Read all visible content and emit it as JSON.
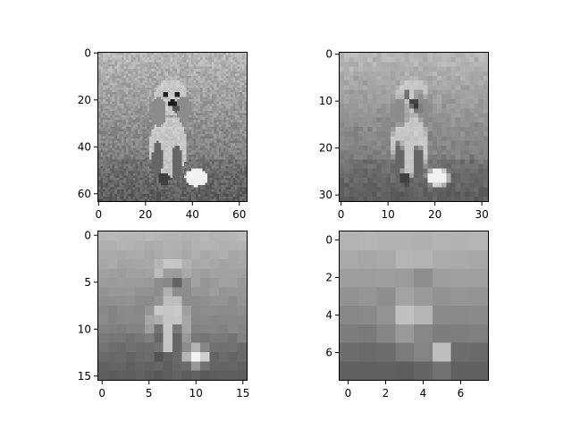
{
  "figure": {
    "background": "#ffffff",
    "panels": [
      {
        "name": "panel-64",
        "resolution": 64,
        "x_ticks": [
          "0",
          "20",
          "40",
          "60"
        ],
        "y_ticks": [
          "0",
          "20",
          "40",
          "60"
        ],
        "tick_values": [
          0,
          20,
          40,
          60
        ]
      },
      {
        "name": "panel-32",
        "resolution": 32,
        "x_ticks": [
          "0",
          "10",
          "20",
          "30"
        ],
        "y_ticks": [
          "0",
          "10",
          "20",
          "30"
        ],
        "tick_values": [
          0,
          10,
          20,
          30
        ]
      },
      {
        "name": "panel-16",
        "resolution": 16,
        "x_ticks": [
          "0",
          "5",
          "10",
          "15"
        ],
        "y_ticks": [
          "0",
          "5",
          "10",
          "15"
        ],
        "tick_values": [
          0,
          5,
          10,
          15
        ]
      },
      {
        "name": "panel-8",
        "resolution": 8,
        "x_ticks": [
          "0",
          "2",
          "4",
          "6"
        ],
        "y_ticks": [
          "0",
          "2",
          "4",
          "6"
        ],
        "tick_values": [
          0,
          2,
          4,
          6
        ]
      }
    ],
    "image_subject": "puppy-sitting-on-grass",
    "colormap": "gray"
  }
}
